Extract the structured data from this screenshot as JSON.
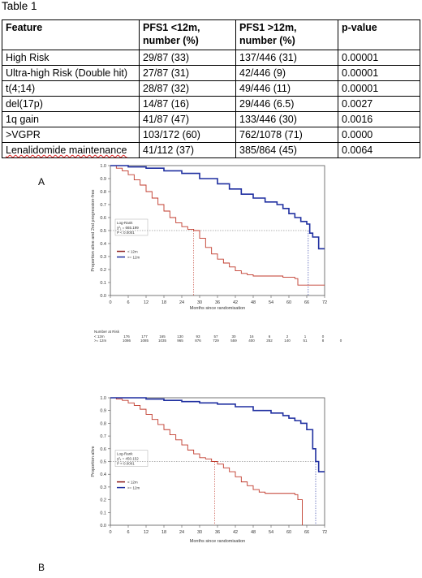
{
  "table": {
    "caption": "Table 1",
    "headers": [
      "Feature",
      "PFS1 <12m, number (%)",
      "PFS1 >12m, number (%)",
      "p-value"
    ],
    "rows": [
      [
        "High Risk",
        "29/87 (33)",
        "137/446 (31)",
        "0.00001"
      ],
      [
        "Ultra-high Risk (Double hit)",
        "27/87 (31)",
        "42/446 (9)",
        "0.00001"
      ],
      [
        "t(4;14)",
        "28/87 (32)",
        "49/446 (11)",
        "0.00001"
      ],
      [
        "del(17p)",
        "14/87 (16)",
        "29/446 (6.5)",
        "0.0027"
      ],
      [
        "1q gain",
        "41/87 (47)",
        "133/446 (30)",
        "0.0016"
      ],
      [
        ">VGPR",
        "103/172 (60)",
        "762/1078 (71)",
        "0.0000"
      ],
      [
        "Lenalidomide maintenance",
        "41/112 (37)",
        "385/864 (45)",
        "0.0064"
      ]
    ]
  },
  "panel_labels": {
    "a": "A",
    "b": "B"
  },
  "risk_table": {
    "title": "Number at Risk",
    "rows": [
      {
        "label": "< 12m",
        "values": [
          "176",
          "177",
          "165",
          "130",
          "93",
          "57",
          "30",
          "16",
          "6",
          "2",
          "1",
          "0",
          ""
        ]
      },
      {
        "label": ">= 12m",
        "values": [
          "1086",
          "1085",
          "1035",
          "965",
          "876",
          "729",
          "559",
          "400",
          "252",
          "140",
          "51",
          "8",
          "0"
        ]
      }
    ]
  },
  "chart_data": [
    {
      "type": "line",
      "ylabel": "Proportion alive and 2nd progression-free",
      "xlabel": "Months since randomisation",
      "xlim": [
        0,
        72
      ],
      "ylim": [
        0,
        1.0
      ],
      "xticks": [
        "0",
        "6",
        "12",
        "18",
        "24",
        "30",
        "36",
        "42",
        "48",
        "54",
        "60",
        "66",
        "72"
      ],
      "yticks": [
        "0.0",
        "0.1",
        "0.2",
        "0.3",
        "0.4",
        "0.5",
        "0.6",
        "0.7",
        "0.8",
        "0.9",
        "1.0"
      ],
      "annotation": [
        "Log-Rank",
        "χ²₁ = 665.199",
        "P < 0.0001"
      ],
      "legend": [
        {
          "label": "< 12m",
          "color": "#8b1a1a"
        },
        {
          "label": ">= 12m",
          "color": "#1f2fa0"
        }
      ],
      "median_lines": [
        28,
        66.5
      ],
      "median_y": 0.5,
      "series": [
        {
          "name": "< 12m",
          "color": "#c0392b",
          "x": [
            0,
            2,
            4,
            6,
            8,
            10,
            12,
            14,
            16,
            18,
            20,
            22,
            24,
            26,
            28,
            30,
            32,
            34,
            36,
            38,
            40,
            42,
            44,
            46,
            48,
            50,
            54,
            58,
            60,
            62,
            63,
            66,
            72
          ],
          "y": [
            1.0,
            0.98,
            0.96,
            0.93,
            0.89,
            0.85,
            0.8,
            0.75,
            0.7,
            0.65,
            0.6,
            0.56,
            0.53,
            0.51,
            0.5,
            0.44,
            0.37,
            0.32,
            0.28,
            0.25,
            0.22,
            0.19,
            0.17,
            0.16,
            0.15,
            0.15,
            0.15,
            0.14,
            0.14,
            0.13,
            0.08,
            0.08,
            0.08
          ]
        },
        {
          "name": ">= 12m",
          "color": "#1f2fa0",
          "x": [
            0,
            6,
            12,
            18,
            24,
            30,
            36,
            40,
            44,
            48,
            52,
            56,
            58,
            60,
            62,
            64,
            66,
            67,
            68,
            70,
            72
          ],
          "y": [
            1.0,
            0.99,
            0.98,
            0.96,
            0.94,
            0.9,
            0.86,
            0.82,
            0.78,
            0.75,
            0.72,
            0.7,
            0.67,
            0.63,
            0.6,
            0.57,
            0.55,
            0.48,
            0.45,
            0.36,
            0.36
          ]
        }
      ]
    },
    {
      "type": "line",
      "ylabel": "Proportion alive",
      "xlabel": "Months since randomisation",
      "xlim": [
        0,
        72
      ],
      "ylim": [
        0,
        1.0
      ],
      "xticks": [
        "0",
        "6",
        "12",
        "18",
        "24",
        "30",
        "36",
        "42",
        "48",
        "54",
        "60",
        "66",
        "72"
      ],
      "yticks": [
        "0.0",
        "0.1",
        "0.2",
        "0.3",
        "0.4",
        "0.5",
        "0.6",
        "0.7",
        "0.8",
        "0.9",
        "1.0"
      ],
      "annotation": [
        "Log-Rank",
        "χ²₁ = 450.152",
        "P < 0.0001"
      ],
      "legend": [
        {
          "label": "< 12m",
          "color": "#8b1a1a"
        },
        {
          "label": ">= 12m",
          "color": "#1f2fa0"
        }
      ],
      "median_lines": [
        35,
        69
      ],
      "median_y": 0.5,
      "series": [
        {
          "name": "< 12m",
          "color": "#c0392b",
          "x": [
            0,
            2,
            4,
            6,
            8,
            10,
            12,
            14,
            16,
            18,
            20,
            22,
            24,
            26,
            28,
            30,
            32,
            34,
            36,
            38,
            40,
            42,
            44,
            46,
            48,
            50,
            52,
            56,
            60,
            62,
            63,
            64,
            64.5
          ],
          "y": [
            1.0,
            0.99,
            0.98,
            0.96,
            0.94,
            0.91,
            0.87,
            0.83,
            0.79,
            0.75,
            0.71,
            0.67,
            0.63,
            0.59,
            0.56,
            0.53,
            0.52,
            0.5,
            0.48,
            0.45,
            0.42,
            0.38,
            0.34,
            0.31,
            0.28,
            0.26,
            0.25,
            0.25,
            0.25,
            0.24,
            0.2,
            0.2,
            0.0
          ]
        },
        {
          "name": ">= 12m",
          "color": "#1f2fa0",
          "x": [
            0,
            6,
            12,
            18,
            24,
            30,
            36,
            42,
            48,
            54,
            58,
            60,
            62,
            64,
            66,
            68,
            69,
            70,
            72
          ],
          "y": [
            1.0,
            1.0,
            0.99,
            0.98,
            0.97,
            0.96,
            0.95,
            0.93,
            0.9,
            0.88,
            0.86,
            0.84,
            0.82,
            0.8,
            0.75,
            0.6,
            0.5,
            0.42,
            0.42
          ]
        }
      ]
    }
  ]
}
